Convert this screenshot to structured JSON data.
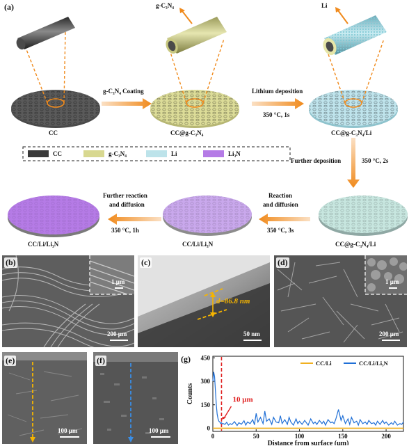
{
  "panel_a": {
    "label": "(a)",
    "stage_cc": "CC",
    "stage_cc_gcn": "CC@g-C₃N₄",
    "stage_cc_gcn_li": "CC@g-C₃N₄/Li",
    "stage_cc_gcn_li_2": "CC@g-C₃N₄/Li",
    "stage_cc_li_li3n_partial": "CC/Li/Li₃N",
    "stage_cc_li_li3n": "CC/Li/Li₃N",
    "top_gcn": "g-C₃N₄",
    "top_li": "Li",
    "arrow_coating": "g-C₃N₄ Coating",
    "arrow_li_dep": "Lithium deposition",
    "arrow_li_dep_cond": "350 °C, 1s",
    "arrow_further_dep": "Further deposition",
    "arrow_further_dep_cond": "350 °C, 2s",
    "arrow_reaction_1": "Reaction",
    "arrow_reaction_2": "and diffusion",
    "arrow_reaction_cond": "350 °C, 3s",
    "arrow_further_react_1": "Further reaction",
    "arrow_further_react_2": "and diffusion",
    "arrow_further_react_cond": "350 °C, 1h",
    "legend": [
      {
        "label": "CC",
        "color": "#3a3a3a"
      },
      {
        "label": "g-C₃N₄",
        "color": "#d8d890"
      },
      {
        "label": "Li",
        "color": "#bde3ea"
      },
      {
        "label": "Li₃N",
        "color": "#b57be6"
      }
    ]
  },
  "panel_b": {
    "label": "(b)",
    "scale_main": "200 μm",
    "scale_inset": "1 μm"
  },
  "panel_c": {
    "label": "(c)",
    "thickness": "d=86.8 nm",
    "scale": "50 nm"
  },
  "panel_d": {
    "label": "(d)",
    "scale_main": "200 μm",
    "scale_inset": "1 μm"
  },
  "panel_e": {
    "label": "(e)",
    "scale": "100 μm"
  },
  "panel_f": {
    "label": "(f)",
    "scale": "100 μm"
  },
  "panel_g": {
    "label": "(g)",
    "annotation": "10 μm",
    "colors": {
      "cc_li": "#f0b020",
      "cc_li_li3n": "#1f6fd6",
      "marker": "#e02020"
    },
    "chart_data": {
      "type": "line",
      "xlabel": "Distance from surface (μm)",
      "ylabel": "Counts",
      "xlim": [
        0,
        220
      ],
      "ylim": [
        -20,
        460
      ],
      "x_ticks": [
        0,
        50,
        100,
        150,
        200
      ],
      "y_ticks": [
        0,
        150,
        300,
        450
      ],
      "legend_placement": "top-right",
      "series": [
        {
          "name": "CC/Li",
          "x": [
            0,
            220
          ],
          "y": [
            0,
            0
          ]
        },
        {
          "name": "CC/Li/Li₃N",
          "x": [
            0,
            1,
            2,
            3,
            4,
            5,
            6,
            7,
            8,
            9,
            10,
            11,
            12,
            14,
            16,
            18,
            20,
            22,
            25,
            28,
            30,
            33,
            36,
            38,
            40,
            43,
            46,
            48,
            50,
            52,
            55,
            58,
            60,
            62,
            65,
            68,
            70,
            73,
            76,
            78,
            80,
            83,
            86,
            88,
            90,
            93,
            96,
            98,
            100,
            103,
            106,
            108,
            110,
            113,
            116,
            118,
            120,
            123,
            126,
            128,
            130,
            133,
            136,
            138,
            140,
            142,
            145,
            148,
            150,
            153,
            156,
            158,
            160,
            163,
            166,
            168,
            170,
            173,
            176,
            178,
            180,
            183,
            186,
            188,
            190,
            193,
            196,
            198,
            200,
            203,
            206,
            208,
            210,
            213,
            216,
            218,
            220
          ],
          "y": [
            300,
            360,
            330,
            240,
            150,
            90,
            60,
            45,
            40,
            30,
            35,
            28,
            30,
            25,
            38,
            20,
            30,
            24,
            42,
            18,
            35,
            26,
            48,
            20,
            40,
            30,
            55,
            22,
            95,
            40,
            70,
            30,
            110,
            45,
            60,
            25,
            70,
            40,
            35,
            80,
            30,
            55,
            25,
            70,
            40,
            20,
            60,
            30,
            45,
            25,
            50,
            35,
            20,
            60,
            30,
            40,
            25,
            50,
            30,
            45,
            20,
            55,
            35,
            40,
            30,
            60,
            120,
            50,
            80,
            30,
            60,
            25,
            70,
            35,
            45,
            20,
            55,
            30,
            40,
            25,
            50,
            30,
            35,
            20,
            45,
            25,
            50,
            30,
            40,
            20,
            35,
            25,
            45,
            20,
            30,
            25,
            40
          ]
        }
      ]
    }
  }
}
